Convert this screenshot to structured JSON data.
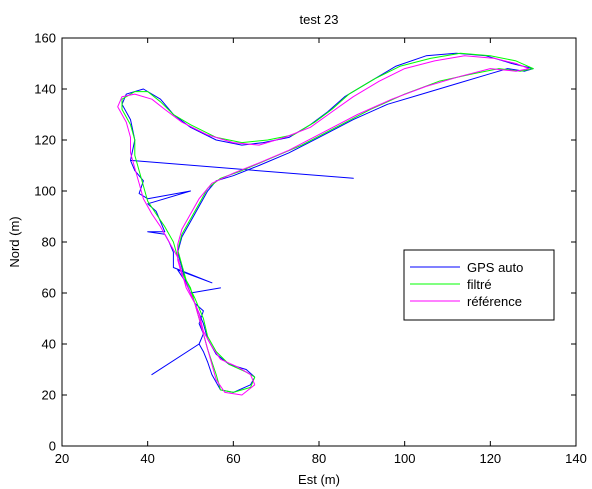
{
  "chart_data": {
    "type": "line",
    "title": "test 23",
    "xlabel": "Est (m)",
    "ylabel": "Nord (m)",
    "xlim": [
      20,
      140
    ],
    "ylim": [
      0,
      160
    ],
    "xticks": [
      20,
      40,
      60,
      80,
      100,
      120,
      140
    ],
    "yticks": [
      0,
      20,
      40,
      60,
      80,
      100,
      120,
      140,
      160
    ],
    "grid": false,
    "legend_position": "right",
    "series": [
      {
        "name": "GPS auto",
        "color": "#0000ff",
        "points": [
          [
            65,
            27
          ],
          [
            64,
            24
          ],
          [
            60,
            21
          ],
          [
            57,
            22
          ],
          [
            55,
            28
          ],
          [
            54,
            33
          ],
          [
            53,
            37
          ],
          [
            52,
            40
          ],
          [
            41,
            28
          ],
          [
            52,
            40
          ],
          [
            53,
            44
          ],
          [
            52,
            48
          ],
          [
            53,
            53
          ],
          [
            51,
            56
          ],
          [
            50,
            60
          ],
          [
            57,
            62
          ],
          [
            50,
            60
          ],
          [
            49,
            64
          ],
          [
            47,
            69
          ],
          [
            55,
            64
          ],
          [
            46,
            70
          ],
          [
            46,
            76
          ],
          [
            45,
            80
          ],
          [
            44,
            83
          ],
          [
            40,
            84
          ],
          [
            44,
            84
          ],
          [
            43,
            88
          ],
          [
            42,
            92
          ],
          [
            40,
            95
          ],
          [
            50,
            100
          ],
          [
            40,
            97
          ],
          [
            38,
            99
          ],
          [
            39,
            104
          ],
          [
            37,
            108
          ],
          [
            36,
            112
          ],
          [
            88,
            105
          ],
          [
            36,
            112
          ],
          [
            37,
            120
          ],
          [
            36,
            128
          ],
          [
            34,
            134
          ],
          [
            35,
            138
          ],
          [
            39,
            140
          ],
          [
            43,
            136
          ],
          [
            46,
            130
          ],
          [
            50,
            125
          ],
          [
            56,
            120
          ],
          [
            62,
            118
          ],
          [
            67,
            119
          ],
          [
            73,
            121
          ],
          [
            78,
            126
          ],
          [
            82,
            131
          ],
          [
            86,
            137
          ],
          [
            92,
            143
          ],
          [
            98,
            149
          ],
          [
            105,
            153
          ],
          [
            112,
            154
          ],
          [
            119,
            153
          ],
          [
            125,
            150
          ],
          [
            130,
            148
          ],
          [
            128,
            147
          ],
          [
            124,
            148
          ],
          [
            120,
            146
          ],
          [
            112,
            142
          ],
          [
            104,
            138
          ],
          [
            96,
            134
          ],
          [
            88,
            128
          ],
          [
            80,
            121
          ],
          [
            73,
            115
          ],
          [
            66,
            110
          ],
          [
            60,
            106
          ],
          [
            56,
            104
          ],
          [
            54,
            100
          ],
          [
            52,
            94
          ],
          [
            50,
            88
          ],
          [
            48,
            82
          ],
          [
            47,
            76
          ],
          [
            48,
            70
          ],
          [
            49,
            64
          ],
          [
            51,
            56
          ],
          [
            53,
            48
          ],
          [
            54,
            42
          ],
          [
            56,
            36
          ],
          [
            59,
            32
          ],
          [
            63,
            30
          ],
          [
            65,
            27
          ]
        ]
      },
      {
        "name": "filtré",
        "color": "#00ff00",
        "points": [
          [
            65,
            27
          ],
          [
            64,
            23
          ],
          [
            60,
            21
          ],
          [
            57,
            22
          ],
          [
            56,
            28
          ],
          [
            55,
            33
          ],
          [
            54,
            38
          ],
          [
            53,
            44
          ],
          [
            52,
            50
          ],
          [
            51,
            56
          ],
          [
            50,
            62
          ],
          [
            48,
            68
          ],
          [
            47,
            74
          ],
          [
            46,
            80
          ],
          [
            44,
            86
          ],
          [
            42,
            91
          ],
          [
            40,
            96
          ],
          [
            39,
            102
          ],
          [
            38,
            108
          ],
          [
            37,
            114
          ],
          [
            37,
            120
          ],
          [
            36,
            126
          ],
          [
            34,
            132
          ],
          [
            34,
            136
          ],
          [
            37,
            139
          ],
          [
            40,
            139
          ],
          [
            43,
            135
          ],
          [
            46,
            130
          ],
          [
            50,
            126
          ],
          [
            56,
            121
          ],
          [
            62,
            119
          ],
          [
            68,
            120
          ],
          [
            74,
            122
          ],
          [
            79,
            127
          ],
          [
            83,
            132
          ],
          [
            87,
            138
          ],
          [
            93,
            144
          ],
          [
            99,
            149
          ],
          [
            106,
            152
          ],
          [
            113,
            154
          ],
          [
            120,
            153
          ],
          [
            126,
            151
          ],
          [
            130,
            148
          ],
          [
            127,
            147
          ],
          [
            122,
            148
          ],
          [
            116,
            146
          ],
          [
            108,
            143
          ],
          [
            100,
            138
          ],
          [
            92,
            132
          ],
          [
            84,
            125
          ],
          [
            76,
            118
          ],
          [
            69,
            113
          ],
          [
            62,
            108
          ],
          [
            57,
            105
          ],
          [
            54,
            101
          ],
          [
            52,
            95
          ],
          [
            50,
            89
          ],
          [
            48,
            83
          ],
          [
            47,
            77
          ],
          [
            48,
            71
          ],
          [
            49,
            65
          ],
          [
            51,
            58
          ],
          [
            53,
            50
          ],
          [
            54,
            43
          ],
          [
            56,
            37
          ],
          [
            59,
            32
          ],
          [
            63,
            29
          ],
          [
            65,
            27
          ]
        ]
      },
      {
        "name": "référence",
        "color": "#ff00ff",
        "points": [
          [
            65,
            24
          ],
          [
            62,
            20
          ],
          [
            58,
            21
          ],
          [
            56,
            26
          ],
          [
            55,
            32
          ],
          [
            54,
            38
          ],
          [
            53,
            44
          ],
          [
            52,
            50
          ],
          [
            51,
            56
          ],
          [
            49,
            62
          ],
          [
            48,
            68
          ],
          [
            47,
            74
          ],
          [
            45,
            80
          ],
          [
            43,
            86
          ],
          [
            41,
            91
          ],
          [
            39,
            97
          ],
          [
            38,
            103
          ],
          [
            37,
            109
          ],
          [
            36,
            115
          ],
          [
            36,
            121
          ],
          [
            35,
            127
          ],
          [
            33,
            133
          ],
          [
            34,
            137
          ],
          [
            37,
            138
          ],
          [
            41,
            136
          ],
          [
            44,
            132
          ],
          [
            48,
            127
          ],
          [
            54,
            122
          ],
          [
            60,
            119
          ],
          [
            66,
            118
          ],
          [
            72,
            121
          ],
          [
            78,
            125
          ],
          [
            83,
            131
          ],
          [
            88,
            137
          ],
          [
            94,
            143
          ],
          [
            100,
            148
          ],
          [
            107,
            151
          ],
          [
            114,
            153
          ],
          [
            121,
            152
          ],
          [
            126,
            150
          ],
          [
            129,
            148
          ],
          [
            126,
            147
          ],
          [
            120,
            148
          ],
          [
            113,
            145
          ],
          [
            105,
            141
          ],
          [
            97,
            136
          ],
          [
            89,
            130
          ],
          [
            81,
            123
          ],
          [
            73,
            116
          ],
          [
            66,
            111
          ],
          [
            60,
            107
          ],
          [
            55,
            103
          ],
          [
            52,
            97
          ],
          [
            50,
            91
          ],
          [
            48,
            85
          ],
          [
            47,
            79
          ],
          [
            47,
            73
          ],
          [
            48,
            67
          ],
          [
            50,
            60
          ],
          [
            52,
            52
          ],
          [
            53,
            45
          ],
          [
            55,
            39
          ],
          [
            57,
            34
          ],
          [
            61,
            31
          ],
          [
            64,
            28
          ],
          [
            65,
            24
          ]
        ]
      }
    ]
  }
}
